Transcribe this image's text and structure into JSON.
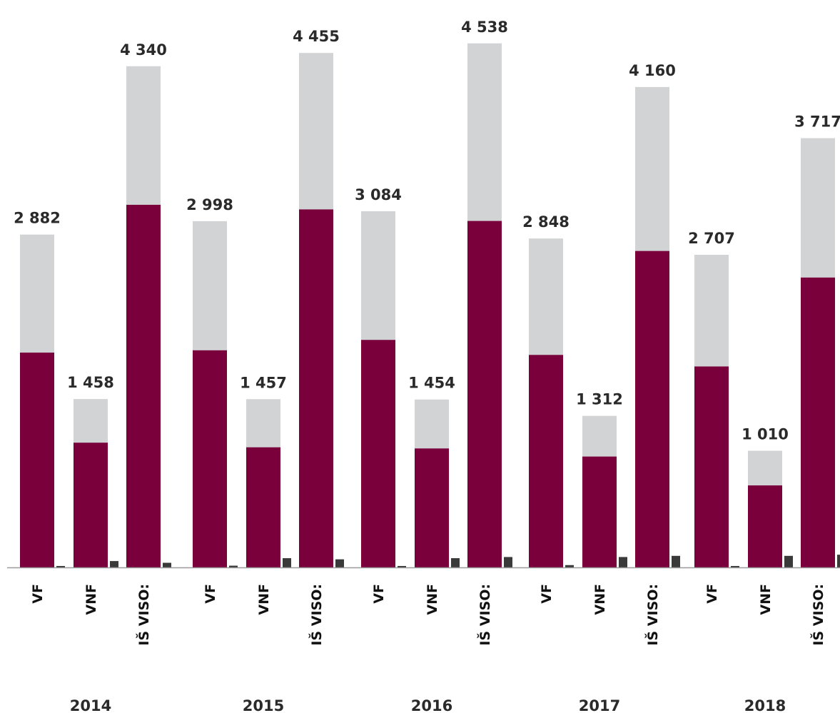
{
  "colors": {
    "primary": "#7a003c",
    "secondary": "#d1d3d4",
    "minor": "#3a3a3a",
    "axis": "#9a9a9a",
    "label": "#2a2a2a"
  },
  "chart_data": {
    "type": "bar",
    "stacked": true,
    "title": "",
    "xlabel": "",
    "ylabel": "",
    "ylim": [
      0,
      4700
    ],
    "grid": false,
    "legend": "none",
    "groups": [
      {
        "label": "2014",
        "bars": [
          {
            "category": "VF",
            "total_label": "2 882",
            "total": 2882,
            "primary": 1860,
            "minor": 8
          },
          {
            "category": "VNF",
            "total_label": "1 458",
            "total": 1458,
            "primary": 1080,
            "minor": 55
          },
          {
            "category": "IŠ VISO:",
            "total_label": "4 340",
            "total": 4340,
            "primary": 3140,
            "minor": 40
          }
        ]
      },
      {
        "label": "2015",
        "bars": [
          {
            "category": "VF",
            "total_label": "2 998",
            "total": 2998,
            "primary": 1880,
            "minor": 15
          },
          {
            "category": "VNF",
            "total_label": "1 457",
            "total": 1457,
            "primary": 1040,
            "minor": 80
          },
          {
            "category": "IŠ VISO:",
            "total_label": "4 455",
            "total": 4455,
            "primary": 3100,
            "minor": 70
          }
        ]
      },
      {
        "label": "2016",
        "bars": [
          {
            "category": "VF",
            "total_label": "3 084",
            "total": 3084,
            "primary": 1970,
            "minor": 12
          },
          {
            "category": "VNF",
            "total_label": "1 454",
            "total": 1454,
            "primary": 1030,
            "minor": 80
          },
          {
            "category": "IŠ VISO:",
            "total_label": "4 538",
            "total": 4538,
            "primary": 3000,
            "minor": 90
          }
        ]
      },
      {
        "label": "2017",
        "bars": [
          {
            "category": "VF",
            "total_label": "2 848",
            "total": 2848,
            "primary": 1840,
            "minor": 20
          },
          {
            "category": "VNF",
            "total_label": "1 312",
            "total": 1312,
            "primary": 960,
            "minor": 90
          },
          {
            "category": "IŠ VISO:",
            "total_label": "4 160",
            "total": 4160,
            "primary": 2740,
            "minor": 100
          }
        ]
      },
      {
        "label": "2018",
        "bars": [
          {
            "category": "VF",
            "total_label": "2 707",
            "total": 2707,
            "primary": 1740,
            "minor": 5
          },
          {
            "category": "VNF",
            "total_label": "1 010",
            "total": 1010,
            "primary": 710,
            "minor": 100
          },
          {
            "category": "IŠ VISO:",
            "total_label": "3 717",
            "total": 3717,
            "primary": 2510,
            "minor": 110
          }
        ]
      }
    ]
  }
}
